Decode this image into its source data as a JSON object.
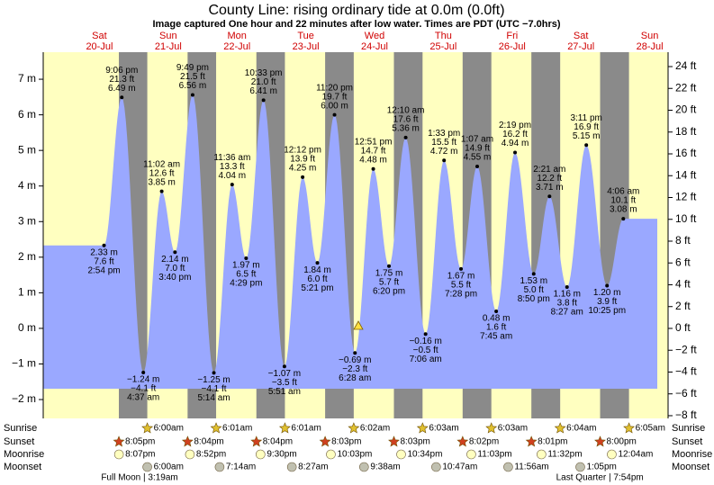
{
  "chart_data": {
    "type": "area",
    "title": "County Line: rising  ordinary tide at 0.0m (0.0ft)",
    "subtitle": "Image captured One hour and 22 minutes after low water. Times are PDT (UTC −7.0hrs)",
    "color": "#9aa8ff",
    "day_color": "#ffffc0",
    "night_color": "#8a8a8a",
    "ylim": [
      -2.53,
      7.76
    ],
    "yticks": [
      {
        "value": -2,
        "label": "−2 m"
      },
      {
        "value": -1,
        "label": "−1 m"
      },
      {
        "value": 0,
        "label": "0 m"
      },
      {
        "value": 1,
        "label": "1 m"
      },
      {
        "value": 2,
        "label": "2 m"
      },
      {
        "value": 3,
        "label": "3 m"
      },
      {
        "value": 4,
        "label": "4 m"
      },
      {
        "value": 5,
        "label": "5 m"
      },
      {
        "value": 6,
        "label": "6 m"
      },
      {
        "value": 7,
        "label": "7 m"
      }
    ],
    "y2lim": [
      -8.25,
      25.32
    ],
    "y2ticks": [
      {
        "value": -8,
        "label": "−8 ft"
      },
      {
        "value": -6,
        "label": "−6 ft"
      },
      {
        "value": -4,
        "label": "−4 ft"
      },
      {
        "value": -2,
        "label": "−2 ft"
      },
      {
        "value": 0,
        "label": "0 ft"
      },
      {
        "value": 2,
        "label": "2 ft"
      },
      {
        "value": 4,
        "label": "4 ft"
      },
      {
        "value": 6,
        "label": "6 ft"
      },
      {
        "value": 8,
        "label": "8 ft"
      },
      {
        "value": 10,
        "label": "10 ft"
      },
      {
        "value": 12,
        "label": "12 ft"
      },
      {
        "value": 14,
        "label": "14 ft"
      },
      {
        "value": 16,
        "label": "16 ft"
      },
      {
        "value": 18,
        "label": "18 ft"
      },
      {
        "value": 20,
        "label": "20 ft"
      },
      {
        "value": 22,
        "label": "22 ft"
      },
      {
        "value": 24,
        "label": "24 ft"
      }
    ],
    "row_labels": [
      "Sunrise",
      "Sunset",
      "Moonrise",
      "Moonset"
    ],
    "days": [
      {
        "weekday": "Sat",
        "date": "20-Jul",
        "sunset": "8:05pm",
        "moonrise": "8:07pm",
        "tides": [
          {
            "time": "2:54 pm",
            "m": 2.33,
            "m_label": "2.33 m",
            "ft": "7.6 ft"
          },
          {
            "time": "9:06 pm",
            "m": 6.49,
            "m_label": "6.49 m",
            "ft": "21.3 ft"
          }
        ]
      },
      {
        "weekday": "Sun",
        "date": "21-Jul",
        "sunrise": "6:00am",
        "sunset": "8:04pm",
        "moonrise": "8:52pm",
        "moonset": "6:00am",
        "moon_phase": "Full Moon | 3:19am",
        "tides": [
          {
            "time": "4:37 am",
            "m": -1.24,
            "m_label": "−1.24 m",
            "ft": "−4.1 ft"
          },
          {
            "time": "11:02 am",
            "m": 3.85,
            "m_label": "3.85 m",
            "ft": "12.6 ft"
          },
          {
            "time": "3:40 pm",
            "m": 2.14,
            "m_label": "2.14 m",
            "ft": "7.0 ft"
          },
          {
            "time": "9:49 pm",
            "m": 6.56,
            "m_label": "6.56 m",
            "ft": "21.5 ft"
          }
        ]
      },
      {
        "weekday": "Mon",
        "date": "22-Jul",
        "sunrise": "6:01am",
        "sunset": "8:04pm",
        "moonrise": "9:30pm",
        "moonset": "7:14am",
        "tides": [
          {
            "time": "5:14 am",
            "m": -1.25,
            "m_label": "−1.25 m",
            "ft": "−4.1 ft"
          },
          {
            "time": "11:36 am",
            "m": 4.04,
            "m_label": "4.04 m",
            "ft": "13.3 ft"
          },
          {
            "time": "4:29 pm",
            "m": 1.97,
            "m_label": "1.97 m",
            "ft": "6.5 ft"
          },
          {
            "time": "10:33 pm",
            "m": 6.41,
            "m_label": "6.41 m",
            "ft": "21.0 ft"
          }
        ]
      },
      {
        "weekday": "Tue",
        "date": "23-Jul",
        "sunrise": "6:01am",
        "sunset": "8:03pm",
        "moonrise": "10:03pm",
        "moonset": "8:27am",
        "tides": [
          {
            "time": "5:51 am",
            "m": -1.07,
            "m_label": "−1.07 m",
            "ft": "−3.5 ft"
          },
          {
            "time": "12:12 pm",
            "m": 4.25,
            "m_label": "4.25 m",
            "ft": "13.9 ft"
          },
          {
            "time": "5:21 pm",
            "m": 1.84,
            "m_label": "1.84 m",
            "ft": "6.0 ft"
          },
          {
            "time": "11:20 pm",
            "m": 6.0,
            "m_label": "6.00 m",
            "ft": "19.7 ft"
          }
        ]
      },
      {
        "weekday": "Wed",
        "date": "24-Jul",
        "sunrise": "6:02am",
        "sunset": "8:03pm",
        "moonrise": "10:34pm",
        "moonset": "9:38am",
        "tides": [
          {
            "time": "6:28 am",
            "m": -0.69,
            "m_label": "−0.69 m",
            "ft": "−2.3 ft"
          },
          {
            "time": "12:51 pm",
            "m": 4.48,
            "m_label": "4.48 m",
            "ft": "14.7 ft"
          },
          {
            "time": "6:20 pm",
            "m": 1.75,
            "m_label": "1.75 m",
            "ft": "5.7 ft"
          }
        ]
      },
      {
        "weekday": "Thu",
        "date": "25-Jul",
        "sunrise": "6:03am",
        "sunset": "8:02pm",
        "moonrise": "11:03pm",
        "moonset": "10:47am",
        "tides": [
          {
            "time": "12:10 am",
            "m": 5.36,
            "m_label": "5.36 m",
            "ft": "17.6 ft"
          },
          {
            "time": "7:06 am",
            "m": -0.16,
            "m_label": "−0.16 m",
            "ft": "−0.5 ft"
          },
          {
            "time": "1:33 pm",
            "m": 4.72,
            "m_label": "4.72 m",
            "ft": "15.5 ft"
          },
          {
            "time": "7:28 pm",
            "m": 1.67,
            "m_label": "1.67 m",
            "ft": "5.5 ft"
          }
        ]
      },
      {
        "weekday": "Fri",
        "date": "26-Jul",
        "sunrise": "6:03am",
        "sunset": "8:01pm",
        "moonrise": "11:32pm",
        "moonset": "11:56am",
        "tides": [
          {
            "time": "1:07 am",
            "m": 4.55,
            "m_label": "4.55 m",
            "ft": "14.9 ft"
          },
          {
            "time": "7:45 am",
            "m": 0.48,
            "m_label": "0.48 m",
            "ft": "1.6 ft"
          },
          {
            "time": "2:19 pm",
            "m": 4.94,
            "m_label": "4.94 m",
            "ft": "16.2 ft"
          },
          {
            "time": "8:50 pm",
            "m": 1.53,
            "m_label": "1.53 m",
            "ft": "5.0 ft"
          }
        ]
      },
      {
        "weekday": "Sat",
        "date": "27-Jul",
        "sunrise": "6:04am",
        "sunset": "8:00pm",
        "moonset": "1:05pm",
        "moon_phase": "Last Quarter | 7:54pm",
        "tides": [
          {
            "time": "2:21 am",
            "m": 3.71,
            "m_label": "3.71 m",
            "ft": "12.2 ft"
          },
          {
            "time": "8:27 am",
            "m": 1.16,
            "m_label": "1.16 m",
            "ft": "3.8 ft"
          },
          {
            "time": "3:11 pm",
            "m": 5.15,
            "m_label": "5.15 m",
            "ft": "16.9 ft"
          },
          {
            "time": "10:25 pm",
            "m": 1.2,
            "m_label": "1.20 m",
            "ft": "3.9 ft"
          }
        ]
      },
      {
        "weekday": "Sun",
        "date": "28-Jul",
        "sunrise": "6:05am",
        "moonrise": "12:04am",
        "tides": [
          {
            "time": "4:06 am",
            "m": 3.08,
            "m_label": "3.08 m",
            "ft": "10.1 ft"
          }
        ]
      }
    ]
  }
}
